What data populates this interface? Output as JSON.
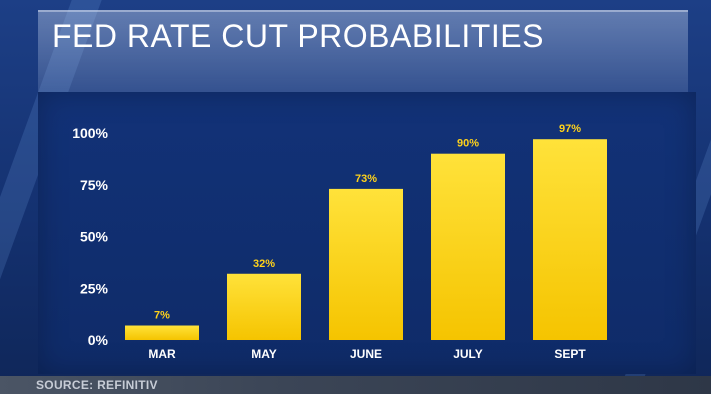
{
  "header": {
    "title": "FED RATE CUT PROBABILITIES"
  },
  "footer": {
    "source": "SOURCE: REFINITIV"
  },
  "colors": {
    "bar": "#f5c400",
    "bar_top": "#ffe23a",
    "label": "#ffd21a",
    "background": "#163a80"
  },
  "chart_data": {
    "type": "bar",
    "title": "FED RATE CUT PROBABILITIES",
    "categories": [
      "MAR",
      "MAY",
      "JUNE",
      "JULY",
      "SEPT"
    ],
    "values": [
      7,
      32,
      73,
      90,
      97
    ],
    "data_labels": [
      "7%",
      "32%",
      "73%",
      "90%",
      "97%"
    ],
    "yticks": [
      "0%",
      "25%",
      "50%",
      "75%",
      "100%"
    ],
    "ytick_values": [
      0,
      25,
      50,
      75,
      100
    ],
    "ylim": [
      0,
      100
    ],
    "xlabel": "",
    "ylabel": "",
    "grid": false,
    "legend": "none"
  }
}
